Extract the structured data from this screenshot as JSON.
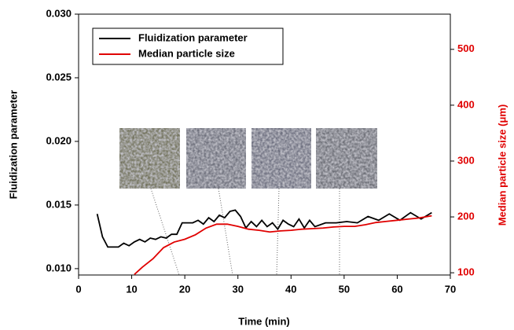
{
  "chart_data": {
    "type": "line",
    "x_label": "Time (min)",
    "y_label": "Fluidization parameter",
    "y2_label": "Median particle size (μm)",
    "xlim": [
      0,
      70
    ],
    "xticks": [
      0,
      10,
      20,
      30,
      40,
      50,
      60,
      70
    ],
    "ylim": [
      0.0095,
      0.03
    ],
    "yticks": [
      {
        "value": 0.01,
        "label": "0.010"
      },
      0.015,
      {
        "value": 0.02,
        "label": "0.020"
      },
      0.025,
      {
        "value": 0.03,
        "label": "0.030"
      }
    ],
    "y2lim": [
      96,
      563
    ],
    "y2ticks": [
      100,
      200,
      300,
      400,
      500
    ],
    "y2_color": "#e00000",
    "legend": "upper left",
    "series": [
      {
        "name": "Fluidization parameter",
        "color": "#000000",
        "x": [
          3.5,
          4.5,
          5.5,
          6.5,
          7.5,
          8.5,
          9.5,
          10.5,
          11.5,
          12.5,
          13.5,
          14.5,
          15.5,
          16.5,
          17.5,
          18.5,
          19.5,
          20.5,
          21.5,
          22.5,
          23.5,
          24.5,
          25.5,
          26.5,
          27.5,
          28.5,
          29.5,
          30.5,
          31.5,
          32.5,
          33.5,
          34.5,
          35.5,
          36.5,
          37.5,
          38.5,
          39.5,
          40.5,
          41.5,
          42.5,
          43.5,
          44.5,
          46.5,
          48.5,
          50.5,
          52.5,
          54.5,
          56.5,
          58.5,
          60.5,
          62.5,
          64.5,
          66.5
        ],
        "values": [
          0.0143,
          0.0125,
          0.0117,
          0.0117,
          0.0117,
          0.012,
          0.0118,
          0.0121,
          0.0123,
          0.0121,
          0.0124,
          0.0123,
          0.0125,
          0.0124,
          0.0127,
          0.0127,
          0.0136,
          0.0136,
          0.0136,
          0.0138,
          0.0135,
          0.014,
          0.0137,
          0.0142,
          0.014,
          0.0145,
          0.0146,
          0.0141,
          0.0132,
          0.0137,
          0.0133,
          0.0138,
          0.0133,
          0.0136,
          0.0131,
          0.0138,
          0.0135,
          0.0133,
          0.0139,
          0.0132,
          0.0138,
          0.0133,
          0.0136,
          0.0136,
          0.0137,
          0.0136,
          0.0141,
          0.0138,
          0.0143,
          0.0138,
          0.0144,
          0.0139,
          0.0144
        ]
      },
      {
        "name": "Median particle size",
        "color": "#e00000",
        "axis": "y2",
        "x": [
          10.5,
          12,
          14,
          16,
          18,
          20,
          22,
          24,
          26,
          28,
          30,
          32,
          34,
          36,
          38,
          40,
          42,
          44,
          46,
          48,
          50,
          52,
          54,
          56,
          58,
          60,
          62,
          64,
          66.5
        ],
        "values": [
          97,
          110,
          125,
          145,
          155,
          160,
          168,
          180,
          187,
          187,
          183,
          178,
          176,
          173,
          175,
          176,
          178,
          179,
          180,
          182,
          183,
          183,
          186,
          190,
          192,
          194,
          196,
          198,
          202
        ]
      }
    ]
  }
}
